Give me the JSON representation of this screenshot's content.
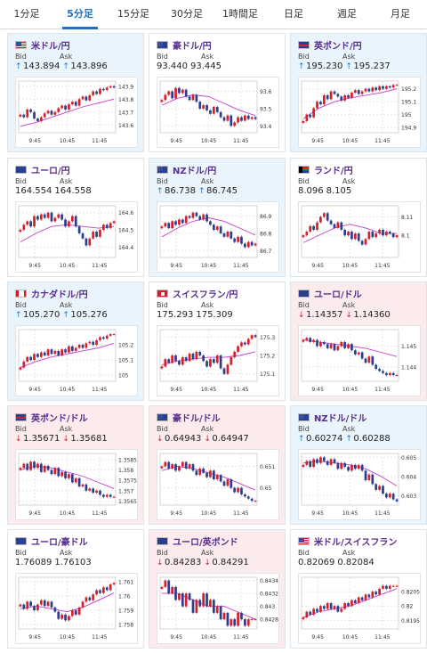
{
  "tabs": [
    {
      "label": "1分足",
      "active": false
    },
    {
      "label": "5分足",
      "active": true
    },
    {
      "label": "15分足",
      "active": false
    },
    {
      "label": "30分足",
      "active": false
    },
    {
      "label": "1時間足",
      "active": false
    },
    {
      "label": "日足",
      "active": false
    },
    {
      "label": "週足",
      "active": false
    },
    {
      "label": "月足",
      "active": false
    }
  ],
  "labels": {
    "bid": "Bid",
    "ask": "Ask"
  },
  "colors": {
    "up_bg": "#e9f4fc",
    "down_bg": "#fcebec",
    "up_arrow": "#1a73c9",
    "down_arrow": "#d3202b",
    "bull_candle": "#d3202b",
    "bear_candle": "#2a3f8f",
    "ma": "#c63dc9"
  },
  "cards": [
    {
      "pair": "米ドル/円",
      "flag": "us-flag-icon",
      "trend": "up",
      "arrow": "↑",
      "bid": "143.894",
      "ask": "143.896",
      "chart_data": {
        "type": "candlestick",
        "x_ticks": [
          "9:45",
          "10:45",
          "11:45"
        ],
        "y_ticks": [
          "143.9",
          "143.8",
          "143.7",
          "143.6"
        ],
        "ylim": [
          143.54,
          143.94
        ],
        "close": [
          143.68,
          143.66,
          143.72,
          143.7,
          143.65,
          143.63,
          143.66,
          143.69,
          143.71,
          143.68,
          143.7,
          143.73,
          143.75,
          143.72,
          143.76,
          143.78,
          143.75,
          143.8,
          143.82,
          143.79,
          143.83,
          143.86,
          143.84,
          143.88,
          143.87,
          143.89,
          143.9,
          143.89
        ],
        "ma": [
          143.59,
          143.62,
          143.66,
          143.7,
          143.74,
          143.77,
          143.8
        ]
      }
    },
    {
      "pair": "豪ドル/円",
      "flag": "au-flag-icon",
      "trend": "flat",
      "arrow": "",
      "bid": "93.440",
      "ask": "93.445",
      "chart_data": {
        "type": "candlestick",
        "x_ticks": [
          "9:45",
          "10:45",
          "11:45"
        ],
        "y_ticks": [
          "93.6",
          "93.5",
          "93.4"
        ],
        "ylim": [
          93.36,
          93.66
        ],
        "close": [
          93.55,
          93.58,
          93.6,
          93.56,
          93.62,
          93.59,
          93.61,
          93.57,
          93.55,
          93.58,
          93.54,
          93.5,
          93.52,
          93.49,
          93.47,
          93.51,
          93.48,
          93.45,
          93.43,
          93.46,
          93.4,
          93.42,
          93.45,
          93.43,
          93.46,
          93.44,
          93.45,
          93.44
        ],
        "ma": [
          93.52,
          93.56,
          93.58,
          93.57,
          93.53,
          93.49,
          93.46
        ]
      }
    },
    {
      "pair": "英ポンド/円",
      "flag": "uk-flag-icon",
      "trend": "up",
      "arrow": "↑",
      "bid": "195.230",
      "ask": "195.237",
      "chart_data": {
        "type": "candlestick",
        "x_ticks": [
          "9:45",
          "10:45",
          "11:45"
        ],
        "y_ticks": [
          "195.2",
          "195.1",
          "195",
          "194.9"
        ],
        "ylim": [
          194.86,
          195.26
        ],
        "close": [
          194.95,
          195.0,
          194.98,
          195.05,
          195.1,
          195.08,
          195.15,
          195.12,
          195.18,
          195.16,
          195.14,
          195.11,
          195.15,
          195.13,
          195.17,
          195.19,
          195.16,
          195.18,
          195.2,
          195.18,
          195.21,
          195.19,
          195.22,
          195.2,
          195.22,
          195.21,
          195.23,
          195.23
        ],
        "ma": [
          194.97,
          195.05,
          195.1,
          195.13,
          195.15,
          195.17,
          195.2
        ]
      }
    },
    {
      "pair": "ユーロ/円",
      "flag": "eu-flag-icon",
      "trend": "flat",
      "arrow": "",
      "bid": "164.554",
      "ask": "164.558",
      "chart_data": {
        "type": "candlestick",
        "x_ticks": [
          "9:45",
          "10:45",
          "11:45"
        ],
        "y_ticks": [
          "164.6",
          "164.5",
          "164.4"
        ],
        "ylim": [
          164.34,
          164.64
        ],
        "close": [
          164.5,
          164.53,
          164.55,
          164.52,
          164.58,
          164.56,
          164.59,
          164.57,
          164.6,
          164.55,
          164.57,
          164.59,
          164.56,
          164.52,
          164.55,
          164.58,
          164.52,
          164.48,
          164.45,
          164.41,
          164.45,
          164.49,
          164.46,
          164.5,
          164.53,
          164.51,
          164.54,
          164.55
        ],
        "ma": [
          164.43,
          164.48,
          164.52,
          164.53,
          164.52,
          164.51,
          164.52
        ]
      }
    },
    {
      "pair": "NZドル/円",
      "flag": "nz-flag-icon",
      "trend": "up",
      "arrow": "↑",
      "bid": "86.738",
      "ask": "86.745",
      "chart_data": {
        "type": "candlestick",
        "x_ticks": [
          "9:45",
          "10:45",
          "11:45"
        ],
        "y_ticks": [
          "86.9",
          "86.8",
          "86.7"
        ],
        "ylim": [
          86.66,
          86.96
        ],
        "close": [
          86.84,
          86.86,
          86.83,
          86.87,
          86.85,
          86.88,
          86.86,
          86.9,
          86.89,
          86.92,
          86.9,
          86.88,
          86.91,
          86.87,
          86.85,
          86.82,
          86.84,
          86.8,
          86.78,
          86.81,
          86.77,
          86.75,
          86.78,
          86.74,
          86.72,
          86.75,
          86.73,
          86.74
        ],
        "ma": [
          86.78,
          86.83,
          86.87,
          86.89,
          86.87,
          86.83,
          86.79
        ]
      }
    },
    {
      "pair": "ランド/円",
      "flag": "za-flag-icon",
      "trend": "flat",
      "arrow": "",
      "bid": "8.096",
      "ask": "8.105",
      "chart_data": {
        "type": "candlestick",
        "x_ticks": [
          "9:45",
          "10:45",
          "11:45"
        ],
        "y_ticks": [
          "8.11",
          "8.1"
        ],
        "ylim": [
          8.088,
          8.116
        ],
        "close": [
          8.1,
          8.102,
          8.105,
          8.103,
          8.107,
          8.11,
          8.112,
          8.108,
          8.106,
          8.104,
          8.107,
          8.103,
          8.1,
          8.102,
          8.098,
          8.101,
          8.097,
          8.095,
          8.098,
          8.102,
          8.099,
          8.101,
          8.103,
          8.1,
          8.102,
          8.101,
          8.099,
          8.1
        ],
        "ma": [
          8.096,
          8.1,
          8.104,
          8.106,
          8.104,
          8.101,
          8.101
        ]
      }
    },
    {
      "pair": "カナダドル/円",
      "flag": "ca-flag-icon",
      "trend": "up",
      "arrow": "↑",
      "bid": "105.270",
      "ask": "105.276",
      "chart_data": {
        "type": "candlestick",
        "x_ticks": [
          "9:45",
          "10:45",
          "11:45"
        ],
        "y_ticks": [
          "105.2",
          "105.1",
          "105"
        ],
        "ylim": [
          104.96,
          105.3
        ],
        "close": [
          105.05,
          105.09,
          105.12,
          105.1,
          105.14,
          105.12,
          105.15,
          105.13,
          105.17,
          105.14,
          105.16,
          105.13,
          105.17,
          105.15,
          105.19,
          105.16,
          105.18,
          105.2,
          105.18,
          105.21,
          105.22,
          105.2,
          105.23,
          105.25,
          105.24,
          105.26,
          105.27,
          105.27
        ],
        "ma": [
          105.05,
          105.09,
          105.12,
          105.14,
          105.16,
          105.18,
          105.21
        ]
      }
    },
    {
      "pair": "スイスフラン/円",
      "flag": "ch-flag-icon",
      "trend": "flat",
      "arrow": "",
      "bid": "175.293",
      "ask": "175.309",
      "chart_data": {
        "type": "candlestick",
        "x_ticks": [
          "9:45",
          "10:45",
          "11:45"
        ],
        "y_ticks": [
          "175.3",
          "175.2",
          "175.1"
        ],
        "ylim": [
          175.06,
          175.34
        ],
        "close": [
          175.14,
          175.18,
          175.16,
          175.2,
          175.17,
          175.15,
          175.19,
          175.17,
          175.21,
          175.18,
          175.22,
          175.2,
          175.17,
          175.14,
          175.18,
          175.16,
          175.2,
          175.13,
          175.1,
          175.15,
          175.19,
          175.22,
          175.25,
          175.27,
          175.26,
          175.29,
          175.31,
          175.3
        ],
        "ma": [
          175.15,
          175.17,
          175.18,
          175.19,
          175.19,
          175.2,
          175.22
        ]
      }
    },
    {
      "pair": "ユーロ/ドル",
      "flag": "eu-flag-icon",
      "trend": "down",
      "arrow": "↓",
      "bid": "1.14357",
      "ask": "1.14360",
      "chart_data": {
        "type": "candlestick",
        "x_ticks": [
          "9:45",
          "10:45",
          "11:45"
        ],
        "y_ticks": [
          "1.145",
          "1.144"
        ],
        "ylim": [
          1.1433,
          1.1458
        ],
        "close": [
          1.1453,
          1.1454,
          1.1452,
          1.1453,
          1.145,
          1.1452,
          1.1451,
          1.1449,
          1.1451,
          1.1448,
          1.145,
          1.1452,
          1.1449,
          1.1451,
          1.1448,
          1.1446,
          1.1447,
          1.1444,
          1.1442,
          1.1445,
          1.1441,
          1.1439,
          1.1438,
          1.1437,
          1.1436,
          1.1437,
          1.1436,
          1.1436
        ],
        "ma": [
          1.1453,
          1.1452,
          1.1451,
          1.145,
          1.1449,
          1.1447,
          1.1445
        ]
      }
    },
    {
      "pair": "英ポンド/ドル",
      "flag": "uk-flag-icon",
      "trend": "down",
      "arrow": "↓",
      "bid": "1.35671",
      "ask": "1.35681",
      "chart_data": {
        "type": "candlestick",
        "x_ticks": [
          "9:45",
          "10:45",
          "11:45"
        ],
        "y_ticks": [
          "1.3585",
          "1.358",
          "1.3575",
          "1.357",
          "1.3565"
        ],
        "ylim": [
          1.3563,
          1.3588
        ],
        "close": [
          1.3581,
          1.3583,
          1.358,
          1.3584,
          1.3581,
          1.3583,
          1.3579,
          1.3582,
          1.358,
          1.3578,
          1.3581,
          1.3577,
          1.3579,
          1.3576,
          1.3578,
          1.3574,
          1.3576,
          1.3572,
          1.3573,
          1.357,
          1.3571,
          1.3569,
          1.357,
          1.3568,
          1.3567,
          1.3568,
          1.3567,
          1.3567
        ],
        "ma": [
          1.358,
          1.3582,
          1.3581,
          1.3579,
          1.3577,
          1.3574,
          1.3571
        ]
      }
    },
    {
      "pair": "豪ドル/ドル",
      "flag": "au-flag-icon",
      "trend": "down",
      "arrow": "↓",
      "bid": "0.64943",
      "ask": "0.64947",
      "chart_data": {
        "type": "candlestick",
        "x_ticks": [
          "9:45",
          "10:45",
          "11:45"
        ],
        "y_ticks": [
          "0.651",
          "0.65"
        ],
        "ylim": [
          0.6492,
          0.6516
        ],
        "close": [
          0.651,
          0.6512,
          0.6509,
          0.6511,
          0.6508,
          0.651,
          0.6512,
          0.6509,
          0.6511,
          0.6508,
          0.6506,
          0.6509,
          0.6507,
          0.6505,
          0.6508,
          0.6504,
          0.6506,
          0.6503,
          0.6501,
          0.6504,
          0.65,
          0.6498,
          0.65,
          0.6497,
          0.6496,
          0.6495,
          0.6494,
          0.6494
        ],
        "ma": [
          0.6508,
          0.651,
          0.6509,
          0.6507,
          0.6505,
          0.6502,
          0.6499
        ]
      }
    },
    {
      "pair": "NZドル/ドル",
      "flag": "nz-flag-icon",
      "trend": "up",
      "arrow": "↑",
      "bid": "0.60274",
      "ask": "0.60288",
      "chart_data": {
        "type": "candlestick",
        "x_ticks": [
          "9:45",
          "10:45",
          "11:45"
        ],
        "y_ticks": [
          "0.605",
          "0.604",
          "0.603"
        ],
        "ylim": [
          0.6025,
          0.6052
        ],
        "close": [
          0.6046,
          0.6048,
          0.6045,
          0.6049,
          0.6047,
          0.605,
          0.6048,
          0.6046,
          0.6049,
          0.6047,
          0.6044,
          0.6047,
          0.6045,
          0.6043,
          0.6046,
          0.6044,
          0.6046,
          0.6043,
          0.6038,
          0.6041,
          0.6036,
          0.6033,
          0.6035,
          0.6031,
          0.6029,
          0.6031,
          0.6028,
          0.6027
        ],
        "ma": [
          0.6047,
          0.6048,
          0.6047,
          0.6046,
          0.6044,
          0.604,
          0.6035
        ]
      }
    },
    {
      "pair": "ユーロ/豪ドル",
      "flag": "eu-flag-icon",
      "trend": "flat",
      "arrow": "",
      "bid": "1.76089",
      "ask": "1.76103",
      "chart_data": {
        "type": "candlestick",
        "x_ticks": [
          "9:45",
          "10:45",
          "11:45"
        ],
        "y_ticks": [
          "1.761",
          "1.76",
          "1.759",
          "1.758"
        ],
        "ylim": [
          1.7577,
          1.7613
        ],
        "close": [
          1.7594,
          1.7591,
          1.7596,
          1.7593,
          1.759,
          1.7594,
          1.7597,
          1.7593,
          1.7596,
          1.7592,
          1.7589,
          1.7584,
          1.7587,
          1.7583,
          1.7586,
          1.759,
          1.7587,
          1.7592,
          1.7596,
          1.7599,
          1.7597,
          1.7601,
          1.7604,
          1.7602,
          1.7606,
          1.7604,
          1.7608,
          1.7609
        ],
        "ma": [
          1.7591,
          1.7593,
          1.7591,
          1.7589,
          1.7592,
          1.7597,
          1.7602
        ]
      }
    },
    {
      "pair": "ユーロ/英ポンド",
      "flag": "eu-flag-icon",
      "trend": "down",
      "arrow": "↓",
      "bid": "0.84283",
      "ask": "0.84291",
      "chart_data": {
        "type": "candlestick",
        "x_ticks": [
          "9:45",
          "10:45",
          "11:45"
        ],
        "y_ticks": [
          "0.8434",
          "0.8432",
          "0.843",
          "0.8428"
        ],
        "ylim": [
          0.84265,
          0.84345
        ],
        "close": [
          0.8433,
          0.8434,
          0.8432,
          0.8433,
          0.8431,
          0.8432,
          0.843,
          0.8432,
          0.8431,
          0.8429,
          0.8431,
          0.843,
          0.8432,
          0.843,
          0.8431,
          0.8429,
          0.843,
          0.8428,
          0.8429,
          0.8427,
          0.8428,
          0.8427,
          0.8429,
          0.8428,
          0.8427,
          0.8428,
          0.8428,
          0.8428
        ],
        "ma": [
          0.8432,
          0.8432,
          0.8431,
          0.843,
          0.843,
          0.8429,
          0.8428
        ]
      }
    },
    {
      "pair": "米ドル/スイスフラン",
      "flag": "us-flag-icon",
      "trend": "flat",
      "arrow": "",
      "bid": "0.82069",
      "ask": "0.82084",
      "chart_data": {
        "type": "candlestick",
        "x_ticks": [
          "9:45",
          "10:45",
          "11:45"
        ],
        "y_ticks": [
          "0.8205",
          "0.82",
          "0.8195"
        ],
        "ylim": [
          0.8192,
          0.821
        ],
        "close": [
          0.8196,
          0.8198,
          0.8197,
          0.8199,
          0.8198,
          0.82,
          0.8199,
          0.8201,
          0.8199,
          0.82,
          0.8198,
          0.8199,
          0.8201,
          0.82,
          0.8202,
          0.8201,
          0.8203,
          0.8202,
          0.8204,
          0.8203,
          0.8205,
          0.8204,
          0.8206,
          0.8207,
          0.8206,
          0.8207,
          0.8207,
          0.8207
        ],
        "ma": [
          0.8196,
          0.8198,
          0.8199,
          0.82,
          0.8202,
          0.8204,
          0.8206
        ]
      }
    }
  ]
}
